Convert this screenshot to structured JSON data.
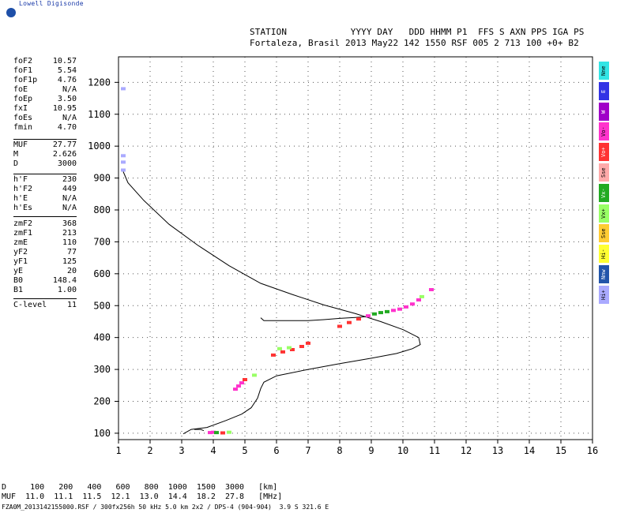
{
  "brand": "Lowell Digisonde",
  "header": {
    "line1": "STATION            YYYY DAY   DDD HHMM P1  FFS S AXN PPS IGA PS",
    "line2": "Fortaleza, Brasil 2013 May22 142 1550 RSF 005 2 713 100 +0+ B2"
  },
  "params_group1": [
    {
      "name": "foF2",
      "value": "10.57"
    },
    {
      "name": "foF1",
      "value": "5.54"
    },
    {
      "name": "foF1p",
      "value": "4.76"
    },
    {
      "name": "foE",
      "value": "N/A"
    },
    {
      "name": "foEp",
      "value": "3.50"
    },
    {
      "name": "fxI",
      "value": "10.95"
    },
    {
      "name": "foEs",
      "value": "N/A"
    },
    {
      "name": "fmin",
      "value": "4.70"
    }
  ],
  "params_group2": [
    {
      "name": "MUF",
      "value": "27.77"
    },
    {
      "name": "M",
      "value": "2.626"
    },
    {
      "name": "D",
      "value": "3000"
    }
  ],
  "params_group3": [
    {
      "name": "h'F",
      "value": "230"
    },
    {
      "name": "h'F2",
      "value": "449"
    },
    {
      "name": "h'E",
      "value": "N/A"
    },
    {
      "name": "h'Es",
      "value": "N/A"
    }
  ],
  "params_group4": [
    {
      "name": "zmF2",
      "value": "368"
    },
    {
      "name": "zmF1",
      "value": "213"
    },
    {
      "name": "zmE",
      "value": "110"
    },
    {
      "name": "yF2",
      "value": "77"
    },
    {
      "name": "yF1",
      "value": "125"
    },
    {
      "name": "yE",
      "value": "20"
    },
    {
      "name": "B0",
      "value": "148.4"
    },
    {
      "name": "B1",
      "value": "1.00"
    }
  ],
  "params_group5": [
    {
      "name": "C-level",
      "value": "11"
    }
  ],
  "legend": [
    {
      "label": "Nne",
      "color": "#33e5e5"
    },
    {
      "label": "E",
      "color": "#3333e5"
    },
    {
      "label": "W",
      "color": "#a000c8"
    },
    {
      "label": "Vo-",
      "color": "#ff33cc"
    },
    {
      "label": "Vo+",
      "color": "#ff3333"
    },
    {
      "label": "Sse",
      "color": "#ffaaaa"
    },
    {
      "label": "Vx-",
      "color": "#22aa22"
    },
    {
      "label": "Vx+",
      "color": "#99ff66"
    },
    {
      "label": "Sse",
      "color": "#ffcc33"
    },
    {
      "label": "Hi-",
      "color": "#ffff33"
    },
    {
      "label": "Nnw",
      "color": "#2255aa"
    },
    {
      "label": "Hi+",
      "color": "#aaaaff"
    }
  ],
  "bottom_table": {
    "row1": "D     100   200   400   600   800  1000  1500  3000   [km]",
    "row2": "MUF  11.0  11.1  11.5  12.1  13.0  14.4  18.2  27.8   [MHz]"
  },
  "footer": "FZA0M_2013142155000.RSF / 300fx256h 50 kHz 5.0 km 2x2 / DPS-4 (904-904)  3.9 S 321.6 E",
  "chart_data": {
    "type": "scatter",
    "xlim": [
      1,
      16
    ],
    "ylim": [
      80,
      1280
    ],
    "xticks": [
      1,
      2,
      3,
      4,
      5,
      6,
      7,
      8,
      9,
      10,
      11,
      12,
      13,
      14,
      15,
      16
    ],
    "yticks": [
      100,
      200,
      300,
      400,
      500,
      600,
      700,
      800,
      900,
      1000,
      1100,
      1200
    ],
    "grid": true,
    "profile": {
      "x": [
        3.05,
        3.3,
        3.8,
        4.4,
        4.9,
        5.2,
        5.4,
        5.5,
        5.6,
        6.0,
        7.0,
        8.0,
        9.0,
        9.8,
        10.3,
        10.55,
        10.5,
        10.0,
        9.3,
        8.5,
        7.5,
        6.5,
        5.5,
        4.5,
        3.5,
        2.6,
        1.8,
        1.3,
        1.15
      ],
      "y": [
        98,
        112,
        118,
        140,
        160,
        180,
        210,
        240,
        260,
        280,
        300,
        318,
        335,
        350,
        365,
        378,
        400,
        425,
        450,
        475,
        502,
        535,
        570,
        625,
        690,
        755,
        830,
        885,
        920
      ]
    },
    "profile_branch": {
      "x": [
        3.4,
        3.6,
        3.7
      ],
      "y": [
        112,
        112,
        108
      ]
    },
    "f2_trace": {
      "x": [
        5.5,
        5.6,
        6.0,
        6.5,
        7.0,
        7.5,
        8.0,
        8.5,
        8.9
      ],
      "y": [
        462,
        453,
        453,
        453,
        453,
        456,
        460,
        463,
        466
      ]
    },
    "echo_points": [
      {
        "x": 3.9,
        "y": 102,
        "mode": "Vo-"
      },
      {
        "x": 4.0,
        "y": 103,
        "mode": "Vo-"
      },
      {
        "x": 4.1,
        "y": 102,
        "mode": "Vx-"
      },
      {
        "x": 4.3,
        "y": 101,
        "mode": "Vo+"
      },
      {
        "x": 4.5,
        "y": 103,
        "mode": "Vx+"
      },
      {
        "x": 4.7,
        "y": 238,
        "mode": "Vo-"
      },
      {
        "x": 4.8,
        "y": 248,
        "mode": "Vo-"
      },
      {
        "x": 4.9,
        "y": 258,
        "mode": "Vo-"
      },
      {
        "x": 5.0,
        "y": 268,
        "mode": "Vo+"
      },
      {
        "x": 5.3,
        "y": 282,
        "mode": "Vx+"
      },
      {
        "x": 5.9,
        "y": 345,
        "mode": "Vo+"
      },
      {
        "x": 6.2,
        "y": 355,
        "mode": "Vo+"
      },
      {
        "x": 6.5,
        "y": 362,
        "mode": "Vo+"
      },
      {
        "x": 6.8,
        "y": 372,
        "mode": "Vo+"
      },
      {
        "x": 7.0,
        "y": 382,
        "mode": "Vo+"
      },
      {
        "x": 6.1,
        "y": 365,
        "mode": "Vx+"
      },
      {
        "x": 6.4,
        "y": 368,
        "mode": "Vx+"
      },
      {
        "x": 8.0,
        "y": 435,
        "mode": "Vo+"
      },
      {
        "x": 8.3,
        "y": 447,
        "mode": "Vo+"
      },
      {
        "x": 8.6,
        "y": 458,
        "mode": "Vo+"
      },
      {
        "x": 8.9,
        "y": 468,
        "mode": "Vo-"
      },
      {
        "x": 9.1,
        "y": 474,
        "mode": "Vx-"
      },
      {
        "x": 9.3,
        "y": 478,
        "mode": "Vx-"
      },
      {
        "x": 9.5,
        "y": 481,
        "mode": "Vx-"
      },
      {
        "x": 9.7,
        "y": 485,
        "mode": "Vo-"
      },
      {
        "x": 9.9,
        "y": 489,
        "mode": "Vo-"
      },
      {
        "x": 10.1,
        "y": 496,
        "mode": "Vo-"
      },
      {
        "x": 10.3,
        "y": 505,
        "mode": "Vo-"
      },
      {
        "x": 10.5,
        "y": 518,
        "mode": "Vo-"
      },
      {
        "x": 10.6,
        "y": 528,
        "mode": "Vx+"
      },
      {
        "x": 10.9,
        "y": 550,
        "mode": "Vo-"
      },
      {
        "x": 1.15,
        "y": 1180,
        "mode": "Hi+"
      },
      {
        "x": 1.15,
        "y": 970,
        "mode": "Hi+"
      },
      {
        "x": 1.15,
        "y": 950,
        "mode": "Hi+"
      },
      {
        "x": 1.15,
        "y": 925,
        "mode": "Hi+"
      }
    ]
  }
}
